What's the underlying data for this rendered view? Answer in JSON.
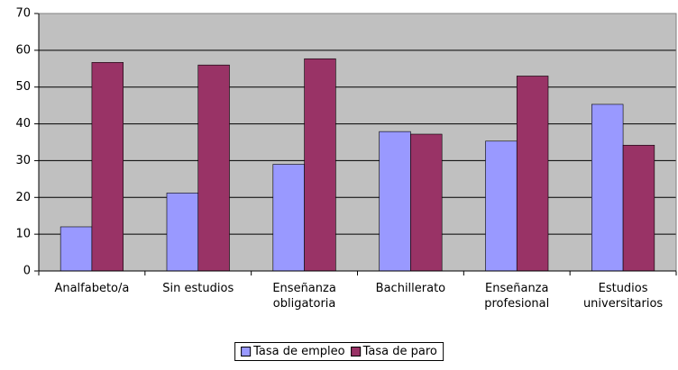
{
  "chart_data": {
    "type": "bar",
    "categories": [
      "Analfabeto/a",
      "Sin estudios",
      "Enseñanza obligatoria",
      "Bachillerato",
      "Enseñanza profesional",
      "Estudios universitarios"
    ],
    "series": [
      {
        "name": "Tasa de empleo",
        "color": "#9999ff",
        "values": [
          12,
          21.2,
          29,
          37.9,
          35.3,
          45.3
        ]
      },
      {
        "name": "Tasa de paro",
        "color": "#993366",
        "values": [
          56.7,
          56,
          57.7,
          37.2,
          53,
          34.2
        ]
      }
    ],
    "ylim": [
      0,
      70
    ],
    "yticks": [
      0,
      10,
      20,
      30,
      40,
      50,
      60,
      70
    ],
    "grid": true,
    "legend": "bottom"
  }
}
